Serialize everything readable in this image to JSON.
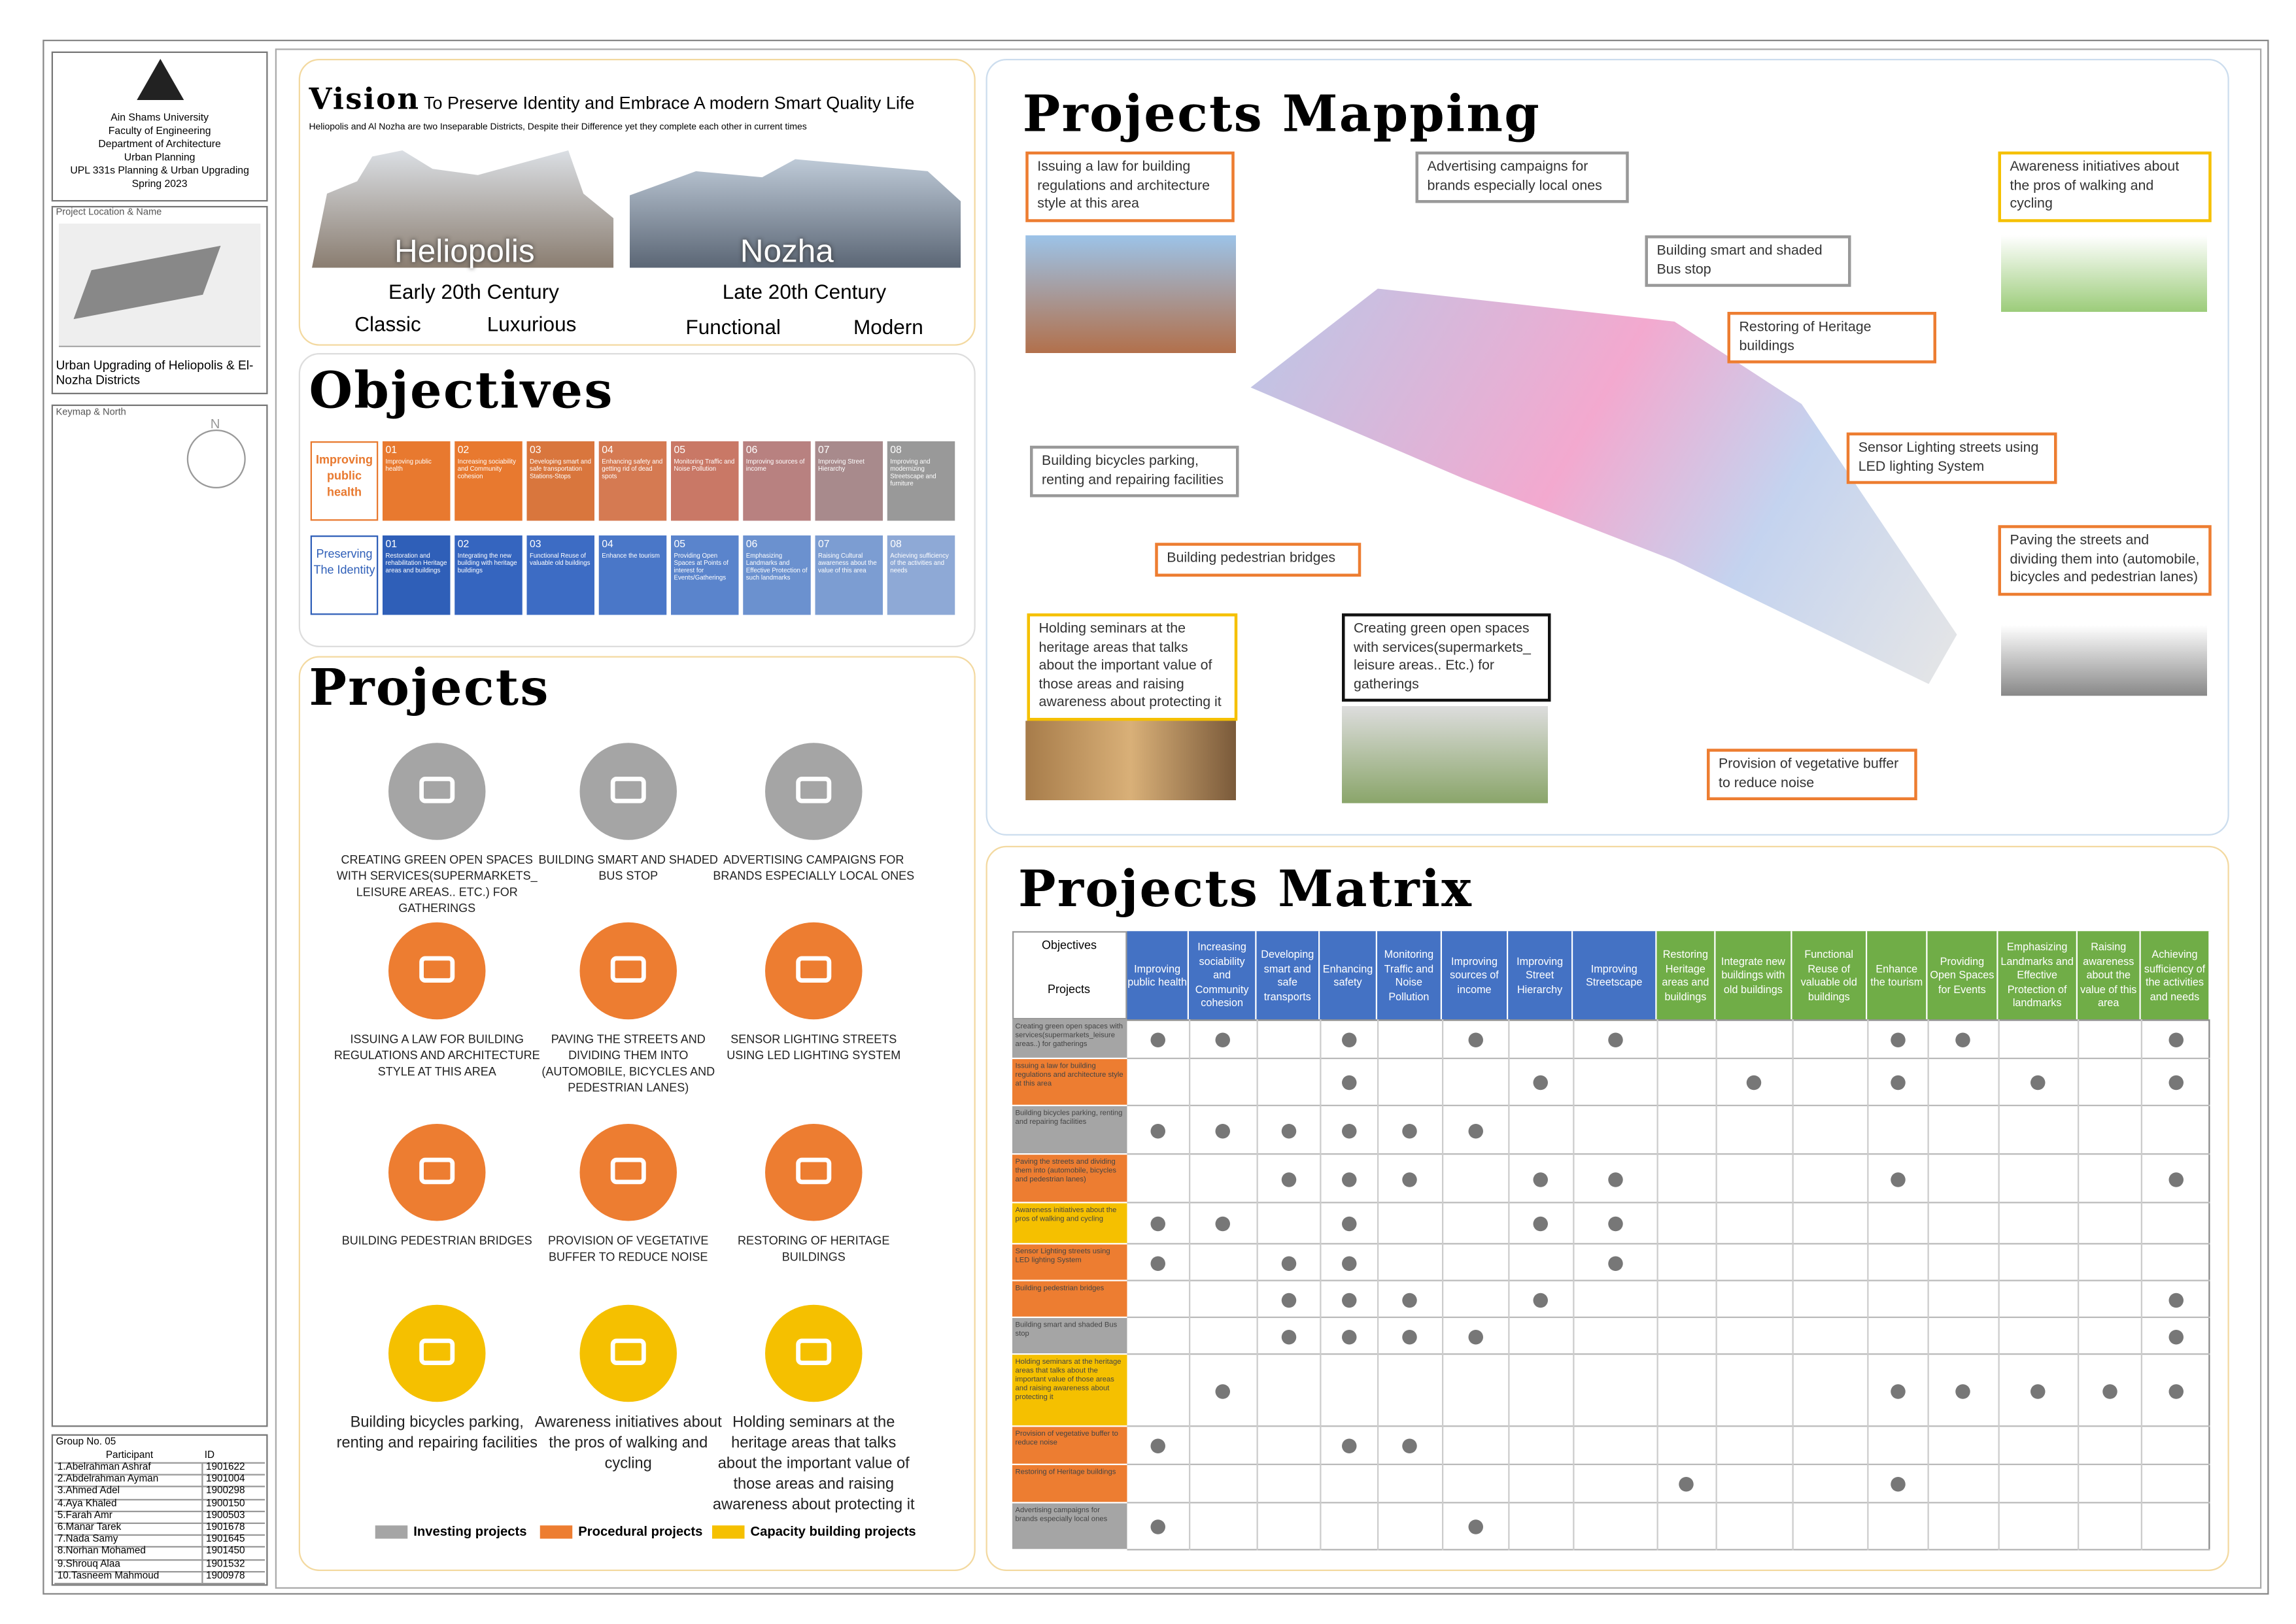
{
  "sidebar": {
    "university": [
      "Ain Shams University",
      "Faculty of Engineering",
      "Department of Architecture",
      "Urban Planning",
      "UPL 331s Planning & Urban Upgrading",
      "Spring 2023"
    ],
    "location_label": "Project Location & Name",
    "project_name": "Urban Upgrading of Heliopolis & El-Nozha Districts",
    "keymap_label": "Keymap & North",
    "north": "N",
    "group": "Group No. 05",
    "participants_header": [
      "Participant",
      "ID"
    ],
    "participants": [
      [
        "1.Abelrahman Ashraf",
        "1901622"
      ],
      [
        "2.Abdelrahman Ayman",
        "1901004"
      ],
      [
        "3.Ahmed Adel",
        "1900298"
      ],
      [
        "4.Aya Khaled",
        "1900150"
      ],
      [
        "5.Farah Amr",
        "1900503"
      ],
      [
        "6.Manar Tarek",
        "1901678"
      ],
      [
        "7.Nada Samy",
        "1901645"
      ],
      [
        "8.Norhan Mohamed",
        "1901450"
      ],
      [
        "9.Shrouq Alaa",
        "1901532"
      ],
      [
        "10.Tasneem Mahmoud",
        "1900978"
      ]
    ]
  },
  "vision": {
    "title": "Vision",
    "statement": "To Preserve Identity and Embrace A modern Smart Quality Life",
    "subtitle": "Heliopolis and Al Nozha are two Inseparable Districts, Despite their Difference yet they complete each other in current times",
    "left": {
      "name": "Heliopolis",
      "era": "Early 20th Century",
      "traits": [
        "Classic",
        "Luxurious"
      ]
    },
    "right": {
      "name": "Nozha",
      "era": "Late 20th Century",
      "traits": [
        "Functional",
        "Modern"
      ]
    }
  },
  "objectives": {
    "title": "Objectives",
    "rows": [
      {
        "label": "Improving public health",
        "items": [
          [
            "01",
            "Improving public health"
          ],
          [
            "02",
            "Increasing sociability and Community cohesion"
          ],
          [
            "03",
            "Developing smart and safe transportation Stations-Stops"
          ],
          [
            "04",
            "Enhancing safety and getting rid of dead spots"
          ],
          [
            "05",
            "Monitoring Traffic and Noise Pollution"
          ],
          [
            "06",
            "Improving sources of income"
          ],
          [
            "07",
            "Improving Street Hierarchy"
          ],
          [
            "08",
            "Improving and modernizing Streetscape and furniture"
          ]
        ]
      },
      {
        "label": "Preserving The Identity",
        "items": [
          [
            "01",
            "Restoration and rehabilitation Heritage areas and buildings"
          ],
          [
            "02",
            "Integrating the new building with heritage buildings"
          ],
          [
            "03",
            "Functional Reuse of valuable old buildings"
          ],
          [
            "04",
            "Enhance the tourism"
          ],
          [
            "05",
            "Providing Open Spaces at Points of interest for Events/Gatherings"
          ],
          [
            "06",
            "Emphasizing Landmarks and Effective Protection of such landmarks"
          ],
          [
            "07",
            "Raising Cultural awareness about the value of this area"
          ],
          [
            "08",
            "Achieving sufficiency of the activities and needs"
          ]
        ]
      }
    ]
  },
  "projects": {
    "title": "Projects",
    "items": [
      "CREATING GREEN OPEN SPACES WITH SERVICES(SUPERMARKETS_ LEISURE AREAS.. ETC.) FOR GATHERINGS",
      "BUILDING SMART AND SHADED BUS STOP",
      "ADVERTISING CAMPAIGNS FOR BRANDS ESPECIALLY LOCAL ONES",
      "ISSUING A LAW FOR BUILDING REGULATIONS AND ARCHITECTURE STYLE AT THIS AREA",
      "PAVING THE STREETS AND DIVIDING THEM INTO (AUTOMOBILE, BICYCLES AND PEDESTRIAN LANES)",
      "SENSOR LIGHTING STREETS USING LED LIGHTING SYSTEM",
      "BUILDING PEDESTRIAN BRIDGES",
      "PROVISION OF VEGETATIVE BUFFER TO REDUCE NOISE",
      "RESTORING OF HERITAGE BUILDINGS",
      "Building bicycles parking, renting and repairing facilities",
      "Awareness initiatives about the pros of walking and cycling",
      "Holding seminars at the heritage areas that talks about the important value of those areas and raising awareness about protecting it"
    ],
    "legend": [
      "Investing projects",
      "Procedural projects",
      "Capacity building projects"
    ]
  },
  "mapping": {
    "title": "Projects Mapping",
    "callouts": [
      "Issuing a law for building regulations and architecture style at this area",
      "Advertising campaigns for brands especially local ones",
      "Building smart and shaded Bus stop",
      "Awareness initiatives about the pros of walking and cycling",
      "Restoring of Heritage buildings",
      "Sensor Lighting streets using LED lighting System",
      "Building bicycles parking, renting and repairing facilities",
      "Building pedestrian bridges",
      "Paving the streets and dividing them into (automobile, bicycles and pedestrian lanes)",
      "Holding seminars at the heritage areas that talks about the important value of those areas and raising awareness about protecting it",
      "Creating green open spaces with services(supermarkets_ leisure areas.. Etc.) for gatherings",
      "Provision of vegetative buffer to reduce noise"
    ]
  },
  "matrix": {
    "title": "Projects Matrix",
    "corner": [
      "Objectives",
      "Projects"
    ],
    "columns": [
      "Improving public health",
      "Increasing sociability and Community cohesion",
      "Developing smart and safe transports",
      "Enhancing safety",
      "Monitoring Traffic and Noise Pollution",
      "Improving sources of income",
      "Improving Street Hierarchy",
      "Improving Streetscape",
      "Restoring Heritage areas and buildings",
      "Integrate new buildings with old buildings",
      "Functional Reuse of valuable old buildings",
      "Enhance the tourism",
      "Providing Open Spaces for Events",
      "Emphasizing Landmarks and Effective Protection of landmarks",
      "Raising awareness about the value of this area",
      "Achieving sufficiency of the activities and needs"
    ],
    "rows": [
      {
        "project": "Creating green open spaces with services(supermarkets_leisure areas..) for gatherings",
        "links": [
          0,
          1,
          3,
          5,
          7,
          11,
          12,
          15
        ]
      },
      {
        "project": "Issuing a law for building regulations and architecture style at this area",
        "links": [
          3,
          6,
          9,
          11,
          13,
          15
        ]
      },
      {
        "project": "Building bicycles parking, renting and repairing facilities",
        "links": [
          0,
          1,
          2,
          3,
          4,
          5
        ]
      },
      {
        "project": "Paving the streets and dividing them into (automobile, bicycles and pedestrian lanes)",
        "links": [
          2,
          3,
          4,
          6,
          7,
          11,
          15
        ]
      },
      {
        "project": "Awareness initiatives about the pros of walking and cycling",
        "links": [
          0,
          1,
          3,
          6,
          7
        ]
      },
      {
        "project": "Sensor Lighting streets using LED lighting System",
        "links": [
          0,
          2,
          3,
          7
        ]
      },
      {
        "project": "Building pedestrian bridges",
        "links": [
          2,
          3,
          4,
          6,
          15
        ]
      },
      {
        "project": "Building smart and shaded Bus stop",
        "links": [
          2,
          3,
          4,
          5,
          15
        ]
      },
      {
        "project": "Holding seminars at the heritage areas that talks about the important value of those areas and raising awareness about protecting it",
        "links": [
          1,
          11,
          12,
          13,
          14,
          15
        ]
      },
      {
        "project": "Provision of vegetative buffer to reduce noise",
        "links": [
          0,
          3,
          4
        ]
      },
      {
        "project": "Restoring of Heritage buildings",
        "links": [
          8,
          11
        ]
      },
      {
        "project": "Advertising campaigns for brands especially local ones",
        "links": [
          0,
          5
        ]
      }
    ]
  }
}
